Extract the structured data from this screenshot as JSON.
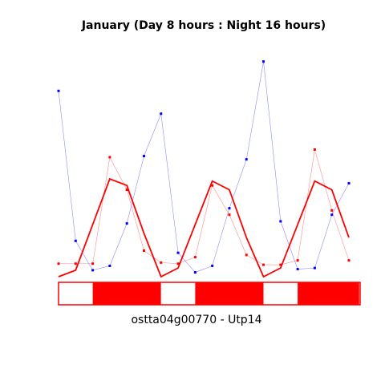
{
  "chart_data": {
    "type": "line",
    "title": "January (Day 8 hours : Night 16 hours)",
    "xlabel": "ostta04g00770 - Utp14",
    "ylabel": "",
    "x": [
      0,
      1,
      2,
      3,
      4,
      5,
      6,
      7,
      8,
      9,
      10,
      11,
      12,
      13,
      14,
      15,
      16,
      17
    ],
    "xlim": [
      0,
      17
    ],
    "ylim": [
      0,
      1
    ],
    "series": [
      {
        "color": "#0000ff",
        "style": "thin line with points",
        "values": [
          0.855,
          0.165,
          0.03,
          0.05,
          0.245,
          0.555,
          0.75,
          0.11,
          0.02,
          0.05,
          0.315,
          0.54,
          0.99,
          0.255,
          0.035,
          0.04,
          0.285,
          0.43
        ]
      },
      {
        "color": "#ff0000",
        "style": "thin line with points",
        "values": [
          0.06,
          0.06,
          0.06,
          0.55,
          0.4,
          0.12,
          0.065,
          0.06,
          0.09,
          0.42,
          0.285,
          0.1,
          0.055,
          0.055,
          0.075,
          0.585,
          0.305,
          0.075
        ]
      },
      {
        "color": "#ff0000",
        "style": "thick line",
        "values": [
          0.0,
          0.03,
          0.24,
          0.45,
          0.42,
          0.2,
          0.0,
          0.04,
          0.24,
          0.44,
          0.4,
          0.18,
          0.0,
          0.04,
          0.24,
          0.44,
          0.4,
          0.18
        ]
      }
    ],
    "photoperiod_bar": [
      {
        "state": "light",
        "start": 0,
        "end": 2
      },
      {
        "state": "dark",
        "start": 2,
        "end": 6
      },
      {
        "state": "light",
        "start": 6,
        "end": 8
      },
      {
        "state": "dark",
        "start": 8,
        "end": 12
      },
      {
        "state": "light",
        "start": 12,
        "end": 14
      },
      {
        "state": "dark",
        "start": 14,
        "end": 17.6
      }
    ],
    "colors": {
      "blue_series": "#0000ff",
      "red_series": "#ff0000",
      "dark_period": "#ff0000",
      "light_period": "#ffffff"
    },
    "grid": false,
    "legend": "none"
  }
}
